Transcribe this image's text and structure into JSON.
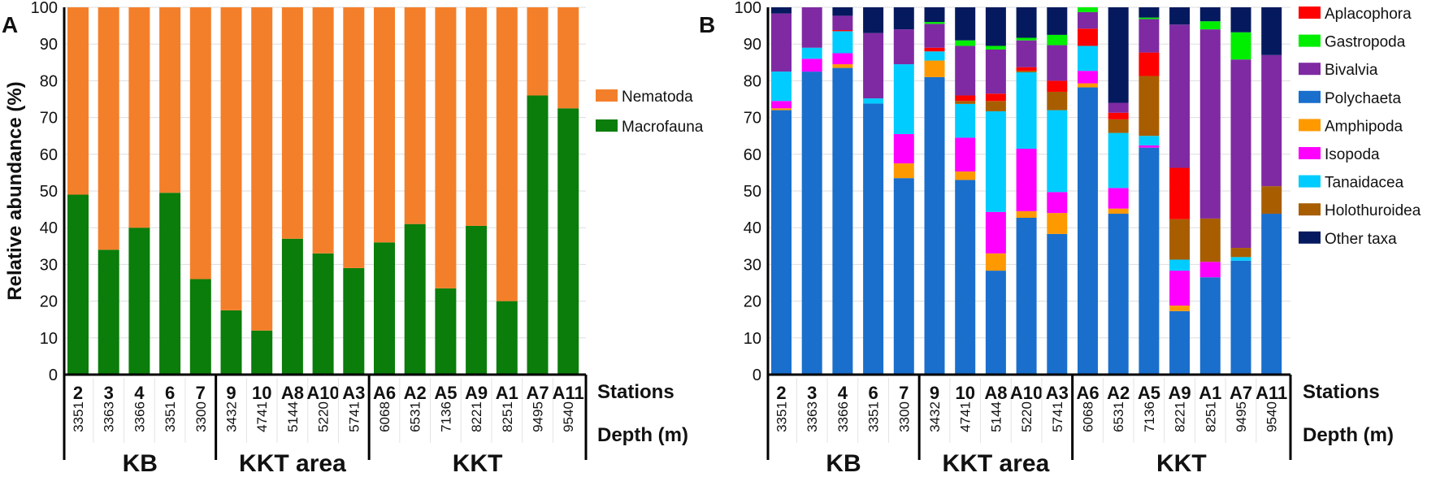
{
  "stations": [
    "2",
    "3",
    "4",
    "6",
    "7",
    "9",
    "10",
    "A8",
    "A10",
    "A3",
    "A6",
    "A2",
    "A5",
    "A9",
    "A1",
    "A7",
    "A11"
  ],
  "depths": [
    "3351",
    "3363",
    "3366",
    "3351",
    "3300",
    "3432",
    "4741",
    "5144",
    "5220",
    "5741",
    "6068",
    "6531",
    "7136",
    "8221",
    "8251",
    "9495",
    "9540"
  ],
  "groups": [
    {
      "label": "KB",
      "count": 5
    },
    {
      "label": "KKT area",
      "count": 5
    },
    {
      "label": "KKT",
      "count": 7
    }
  ],
  "row_labels": {
    "stations": "Stations",
    "depth": "Depth (m)"
  },
  "chart_data": [
    {
      "panel": "A",
      "type": "bar",
      "stacked": true,
      "ylabel": "Relative abundance (%)",
      "ylim": [
        0,
        100
      ],
      "yticks": [
        0,
        10,
        20,
        30,
        40,
        50,
        60,
        70,
        80,
        90,
        100
      ],
      "grid": true,
      "legend_position": "right",
      "stack_order": [
        1,
        0
      ],
      "series": [
        {
          "name": "Nematoda",
          "color": "#f47f2a",
          "values": [
            51,
            66,
            60,
            50.5,
            74,
            82.5,
            88,
            63,
            67,
            71,
            64,
            59,
            76.5,
            59.5,
            80,
            24,
            27.5
          ]
        },
        {
          "name": "Macrofauna",
          "color": "#0a7d0a",
          "values": [
            49,
            34,
            40,
            49.5,
            26,
            17.5,
            12,
            37,
            33,
            29,
            36,
            41,
            23.5,
            40.5,
            20,
            76,
            72.5
          ]
        }
      ]
    },
    {
      "panel": "B",
      "type": "bar",
      "stacked": true,
      "ylim": [
        0,
        100
      ],
      "yticks": [
        0,
        10,
        20,
        30,
        40,
        50,
        60,
        70,
        80,
        90,
        100
      ],
      "grid": true,
      "legend_position": "right",
      "stack_order": [
        3,
        4,
        5,
        6,
        7,
        0,
        2,
        1,
        8
      ],
      "series": [
        {
          "name": "Aplacophora",
          "color": "#ff0000",
          "values": [
            0,
            0,
            0.3,
            0,
            0,
            1,
            1.5,
            2,
            1,
            3,
            4.7,
            1.8,
            6.4,
            14,
            0,
            0,
            0
          ]
        },
        {
          "name": "Gastropoda",
          "color": "#00ee00",
          "values": [
            0,
            0,
            0,
            0,
            0,
            0.5,
            1.5,
            1,
            0.7,
            2.8,
            1.3,
            0,
            0.4,
            0,
            2.2,
            7.4,
            0
          ]
        },
        {
          "name": "Bivalvia",
          "color": "#7f2aa3",
          "values": [
            15.8,
            11,
            3.9,
            17.8,
            9.5,
            6.5,
            13.5,
            12,
            7.3,
            9.7,
            4.5,
            2.7,
            9.1,
            39,
            51.5,
            51.3,
            35.7
          ]
        },
        {
          "name": "Polychaeta",
          "color": "#1a6fcc",
          "values": [
            72,
            82.5,
            83.5,
            73.8,
            53.5,
            81,
            53,
            28.3,
            42.7,
            38.3,
            78.2,
            43.8,
            61.8,
            17.3,
            26.5,
            31,
            43.8
          ]
        },
        {
          "name": "Amphipoda",
          "color": "#ff9900",
          "values": [
            0.5,
            0,
            1,
            0,
            4,
            4.5,
            2.3,
            4.7,
            1.8,
            5.7,
            1.1,
            1.4,
            0,
            1.5,
            0,
            0,
            0
          ]
        },
        {
          "name": "Isopoda",
          "color": "#ff00ff",
          "values": [
            2,
            3.5,
            3,
            0,
            8,
            0,
            9.2,
            11.3,
            17,
            5.7,
            3.4,
            5.6,
            0.6,
            9.5,
            4.2,
            0,
            0
          ]
        },
        {
          "name": "Tanaidacea",
          "color": "#00ccff",
          "values": [
            8,
            3,
            6,
            1.4,
            19,
            2.5,
            9.2,
            27.4,
            20.8,
            22.3,
            6.8,
            15,
            2.6,
            3,
            0,
            1,
            0
          ]
        },
        {
          "name": "Holothuroidea",
          "color": "#a85e00",
          "values": [
            0,
            0,
            0,
            0,
            0,
            0,
            0.8,
            2.8,
            0.4,
            5,
            0,
            3.7,
            16.3,
            11,
            11.8,
            2.5,
            7.5
          ]
        },
        {
          "name": "Other taxa",
          "color": "#051a5e",
          "values": [
            1.7,
            0,
            2.3,
            7,
            6,
            4,
            9,
            10.5,
            8.3,
            7.5,
            0,
            26,
            2.8,
            4.7,
            3.8,
            6.8,
            13
          ]
        }
      ]
    }
  ]
}
